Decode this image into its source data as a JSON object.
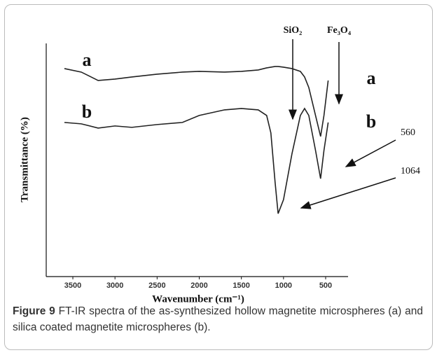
{
  "chart_data": {
    "type": "line",
    "xlabel": "Wavenumber (cm⁻¹)",
    "ylabel": "Transmittance (%)",
    "x": [
      3600,
      3400,
      3200,
      3000,
      2800,
      2500,
      2200,
      2000,
      1700,
      1500,
      1300,
      1200,
      1150,
      1100,
      1064,
      1000,
      900,
      800,
      750,
      700,
      620,
      560,
      520,
      470
    ],
    "series": [
      {
        "name": "a",
        "color": "#222222",
        "values": [
          89.2,
          87.7,
          84.1,
          84.7,
          85.6,
          86.8,
          87.7,
          88.0,
          87.7,
          88.0,
          88.6,
          89.5,
          89.8,
          90.1,
          90.1,
          89.8,
          89.2,
          88.0,
          85.6,
          81.1,
          69.1,
          60.1,
          69.1,
          84.1
        ]
      },
      {
        "name": "b",
        "color": "#222222",
        "values": [
          66.1,
          65.5,
          63.7,
          64.6,
          64.0,
          65.2,
          66.1,
          69.1,
          71.5,
          72.1,
          71.5,
          69.1,
          61.6,
          40.5,
          27.0,
          33.0,
          52.6,
          69.1,
          72.1,
          69.1,
          54.1,
          42.0,
          54.1,
          66.1
        ]
      }
    ],
    "xlim": [
      3816,
      234
    ],
    "xticks": [
      3500,
      3000,
      2500,
      2000,
      1500,
      1000,
      500
    ],
    "ylim": [
      0,
      100
    ],
    "annotations": [
      "SiO₂",
      "Fe₃O₄",
      "560",
      "1064"
    ]
  },
  "caption": {
    "label": "Figure 9",
    "text": "FT-IR spectra of the as-synthesized hollow magnetite microspheres (a) and silica coated magnetite microspheres (b)."
  }
}
